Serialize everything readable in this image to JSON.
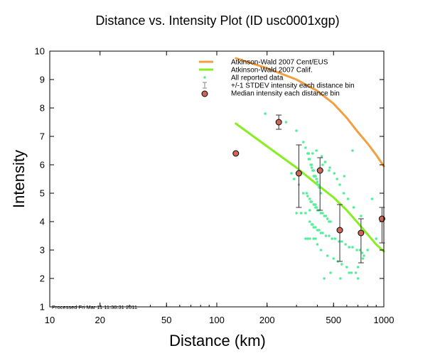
{
  "chart_data": {
    "type": "scatter",
    "title": "Distance vs. Intensity Plot (ID usc0001xgp)",
    "xlabel": "Distance (km)",
    "ylabel": "Intensity",
    "x_scale": "log",
    "xlim": [
      10,
      1000
    ],
    "ylim": [
      1,
      10
    ],
    "x_ticks": [
      10,
      20,
      50,
      100,
      200,
      500,
      1000
    ],
    "y_ticks": [
      1,
      2,
      3,
      4,
      5,
      6,
      7,
      8,
      9,
      10
    ],
    "grid": false,
    "legend_position": "top-right",
    "footnote": "Processed Fri Mar 11 11:38:31 2011",
    "series": [
      {
        "name": "Atkinson-Wald 2007 Cent/EUS",
        "kind": "line",
        "color": "#f0a040",
        "x": [
          130,
          200,
          300,
          400,
          500,
          600,
          700,
          800,
          900,
          1000
        ],
        "y": [
          9.75,
          9.4,
          9.0,
          8.6,
          8.15,
          7.65,
          7.15,
          6.75,
          6.35,
          5.95
        ]
      },
      {
        "name": "Atkinson-Wald 2007 Calif.",
        "kind": "line",
        "color": "#88ee22",
        "x": [
          130,
          200,
          300,
          400,
          500,
          600,
          700,
          800,
          900,
          1000
        ],
        "y": [
          7.45,
          6.65,
          5.9,
          5.3,
          4.85,
          4.4,
          3.95,
          3.55,
          3.2,
          2.95
        ]
      },
      {
        "name": "All reported data",
        "kind": "points",
        "color": "#55ee99",
        "x": [
          195,
          260,
          300,
          330,
          340,
          350,
          355,
          360,
          365,
          370,
          375,
          380,
          385,
          390,
          395,
          400,
          405,
          410,
          415,
          420,
          345,
          350,
          360,
          365,
          370,
          380,
          385,
          390,
          395,
          400,
          410,
          420,
          430,
          440,
          450,
          460,
          470,
          480,
          360,
          370,
          375,
          380,
          390,
          400,
          410,
          420,
          430,
          450,
          470,
          490,
          510,
          540,
          560,
          590,
          620,
          650,
          690,
          720,
          740,
          760,
          340,
          350,
          360,
          380,
          390,
          400,
          420,
          460,
          500,
          530,
          560,
          600,
          640,
          680,
          700,
          750,
          800,
          900,
          280,
          290,
          310,
          330,
          320,
          355,
          375,
          395,
          425,
          445,
          475,
          505,
          525,
          545,
          575,
          610,
          660,
          730,
          370,
          380,
          390,
          430,
          470,
          580,
          650,
          850,
          300,
          340,
          360,
          440,
          480,
          550,
          620,
          700
        ],
        "y": [
          7.8,
          7.5,
          7.2,
          6.8,
          6.6,
          6.4,
          6.4,
          6.2,
          6.0,
          6.0,
          5.8,
          5.8,
          5.6,
          5.6,
          5.5,
          5.4,
          5.3,
          5.2,
          5.2,
          5.0,
          5.0,
          4.9,
          4.8,
          4.7,
          4.7,
          4.6,
          4.6,
          4.5,
          4.5,
          4.4,
          4.4,
          4.3,
          4.3,
          4.2,
          4.2,
          4.1,
          4.0,
          4.0,
          4.0,
          3.9,
          3.9,
          3.8,
          3.8,
          3.7,
          3.7,
          3.6,
          3.6,
          3.5,
          3.5,
          3.4,
          3.4,
          3.3,
          3.3,
          3.2,
          3.1,
          3.1,
          3.0,
          3.0,
          2.9,
          2.8,
          3.4,
          3.4,
          3.4,
          3.4,
          3.4,
          3.2,
          3.0,
          2.8,
          2.7,
          2.6,
          2.5,
          2.4,
          2.2,
          2.2,
          2.0,
          2.7,
          3.0,
          3.4,
          5.7,
          5.5,
          5.3,
          5.0,
          4.3,
          6.2,
          6.4,
          6.5,
          6.3,
          6.1,
          5.9,
          5.7,
          5.5,
          5.3,
          5.0,
          4.8,
          4.5,
          4.2,
          5.9,
          5.6,
          4.6,
          6.0,
          5.8,
          5.6,
          6.5,
          4.8,
          4.3,
          4.3,
          4.4,
          2.0,
          2.2,
          2.0,
          2.2,
          2.4
        ]
      },
      {
        "name": "+/-1 STDEV intensity each distance bin",
        "kind": "errorbars",
        "color": "#333333",
        "x": [
          235,
          310,
          415,
          545,
          730,
          975
        ],
        "low": [
          7.25,
          4.5,
          4.4,
          2.6,
          2.55,
          3.25
        ],
        "high": [
          7.75,
          6.7,
          6.25,
          4.6,
          4.1,
          4.5
        ]
      },
      {
        "name": "Median intensity each distance bin",
        "kind": "markers",
        "color": "#cc6655",
        "x": [
          130,
          235,
          310,
          415,
          545,
          730,
          975
        ],
        "y": [
          6.4,
          7.5,
          5.7,
          5.8,
          3.7,
          3.6,
          4.1
        ]
      }
    ]
  }
}
